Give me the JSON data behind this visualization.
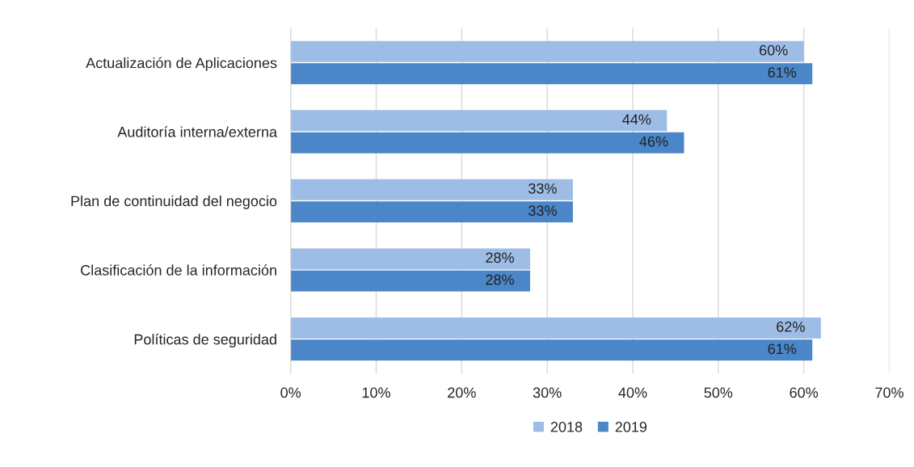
{
  "chart_data": {
    "type": "bar",
    "orientation": "horizontal",
    "categories": [
      "Actualización de Aplicaciones",
      "Auditoría interna/externa",
      "Plan de continuidad del negocio",
      "Clasificación de la información",
      "Políticas de seguridad"
    ],
    "series": [
      {
        "name": "2018",
        "color": "#9dbde6",
        "values": [
          60,
          44,
          33,
          28,
          62
        ],
        "value_labels": [
          "60%",
          "44%",
          "33%",
          "28%",
          "62%"
        ]
      },
      {
        "name": "2019",
        "color": "#4a86c8",
        "values": [
          61,
          46,
          33,
          28,
          61
        ],
        "value_labels": [
          "61%",
          "46%",
          "33%",
          "28%",
          "61%"
        ]
      }
    ],
    "xlim": [
      0,
      70
    ],
    "xticks": [
      {
        "value": 0,
        "label": "0%"
      },
      {
        "value": 10,
        "label": "10%"
      },
      {
        "value": 20,
        "label": "20%"
      },
      {
        "value": 30,
        "label": "30%"
      },
      {
        "value": 40,
        "label": "40%"
      },
      {
        "value": 50,
        "label": "50%"
      },
      {
        "value": 60,
        "label": "60%"
      },
      {
        "value": 70,
        "label": "70%"
      }
    ],
    "grid": "x",
    "legend": "bottom"
  }
}
